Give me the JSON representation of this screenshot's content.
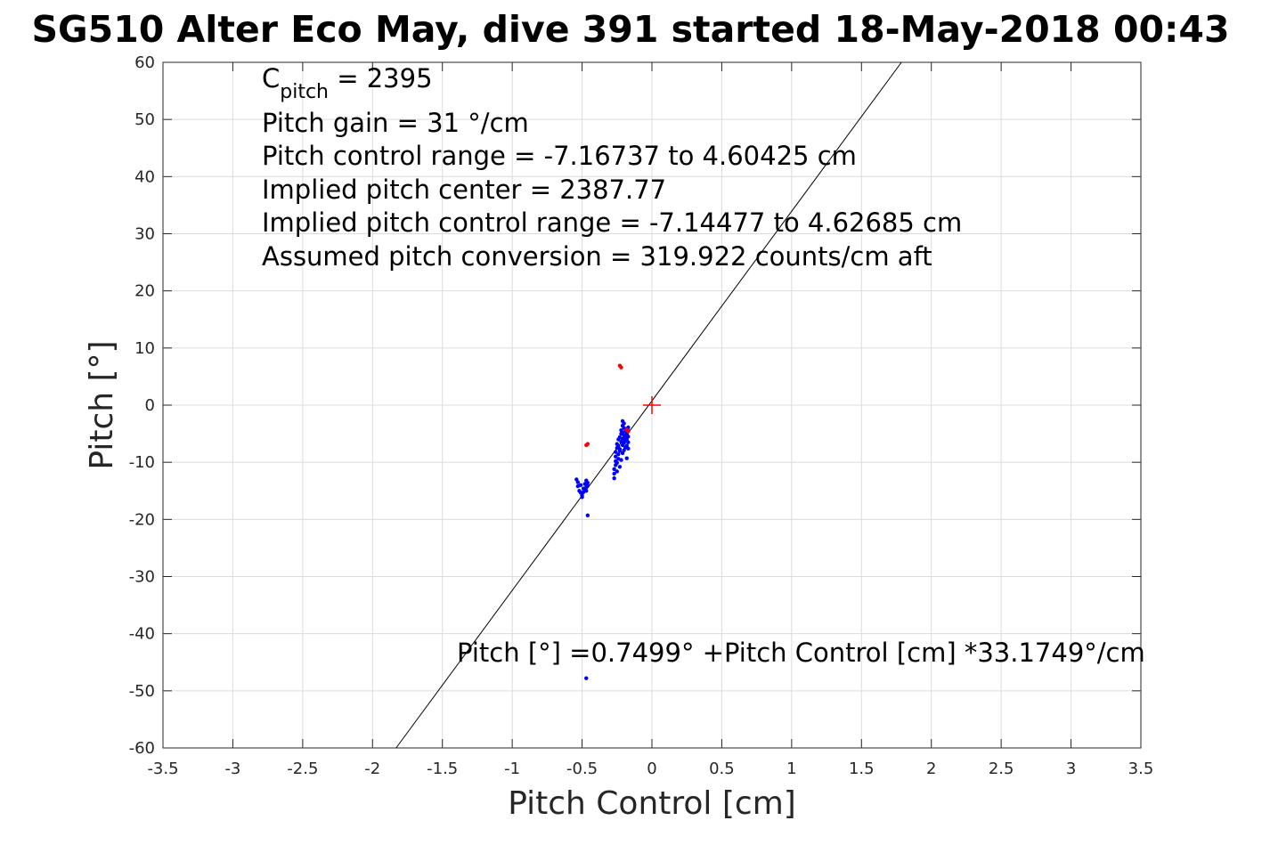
{
  "chart_data": {
    "type": "scatter",
    "title": "SG510 Alter Eco May, dive 391 started 18-May-2018 00:43",
    "xlabel": "Pitch Control [cm]",
    "ylabel": "Pitch [°]",
    "xlim": [
      -3.5,
      3.5
    ],
    "ylim": [
      -60,
      60
    ],
    "xticks": [
      -3.5,
      -3,
      -2.5,
      -2,
      -1.5,
      -1,
      -0.5,
      0,
      0.5,
      1,
      1.5,
      2,
      2.5,
      3,
      3.5
    ],
    "xtick_labels": [
      "-3.5",
      "-3",
      "-2.5",
      "-2",
      "-1.5",
      "-1",
      "-0.5",
      "0",
      "0.5",
      "1",
      "1.5",
      "2",
      "2.5",
      "3",
      "3.5"
    ],
    "yticks": [
      -60,
      -50,
      -40,
      -30,
      -20,
      -10,
      0,
      10,
      20,
      30,
      40,
      50,
      60
    ],
    "ytick_labels": [
      "-60",
      "-50",
      "-40",
      "-30",
      "-20",
      "-10",
      "0",
      "10",
      "20",
      "30",
      "40",
      "50",
      "60"
    ],
    "grid": true,
    "fit_line": {
      "intercept": 0.7499,
      "slope": 33.1749
    },
    "center_marker": {
      "x": 0,
      "y": 0,
      "color": "#ff0000",
      "symbol": "plus"
    },
    "colors": {
      "series": "#0000ff",
      "outliers": "#ff0000",
      "fit": "#000000"
    },
    "series": [
      {
        "color": "#0000ff",
        "points": [
          [
            -0.54,
            -13.0
          ],
          [
            -0.53,
            -13.5
          ],
          [
            -0.53,
            -14.2
          ],
          [
            -0.52,
            -15.0
          ],
          [
            -0.51,
            -15.3
          ],
          [
            -0.51,
            -14.0
          ],
          [
            -0.5,
            -15.8
          ],
          [
            -0.5,
            -16.1
          ],
          [
            -0.49,
            -14.6
          ],
          [
            -0.49,
            -15.2
          ],
          [
            -0.48,
            -13.8
          ],
          [
            -0.48,
            -14.9
          ],
          [
            -0.47,
            -13.2
          ],
          [
            -0.47,
            -14.4
          ],
          [
            -0.47,
            -15.0
          ],
          [
            -0.46,
            -13.6
          ],
          [
            -0.46,
            -14.1
          ],
          [
            -0.46,
            -19.3
          ],
          [
            -0.47,
            -47.8
          ],
          [
            -0.27,
            -12.8
          ],
          [
            -0.27,
            -12.0
          ],
          [
            -0.27,
            -11.2
          ],
          [
            -0.26,
            -10.5
          ],
          [
            -0.26,
            -9.8
          ],
          [
            -0.26,
            -9.0
          ],
          [
            -0.26,
            -8.2
          ],
          [
            -0.25,
            -7.5
          ],
          [
            -0.25,
            -6.8
          ],
          [
            -0.25,
            -10.1
          ],
          [
            -0.25,
            -11.6
          ],
          [
            -0.24,
            -9.4
          ],
          [
            -0.24,
            -8.6
          ],
          [
            -0.24,
            -7.2
          ],
          [
            -0.24,
            -6.0
          ],
          [
            -0.23,
            -5.6
          ],
          [
            -0.23,
            -8.0
          ],
          [
            -0.23,
            -10.8
          ],
          [
            -0.23,
            -7.7
          ],
          [
            -0.22,
            -6.4
          ],
          [
            -0.22,
            -5.0
          ],
          [
            -0.22,
            -4.4
          ],
          [
            -0.22,
            -9.6
          ],
          [
            -0.21,
            -3.6
          ],
          [
            -0.21,
            -4.8
          ],
          [
            -0.21,
            -5.9
          ],
          [
            -0.21,
            -7.0
          ],
          [
            -0.21,
            -8.4
          ],
          [
            -0.21,
            -2.8
          ],
          [
            -0.2,
            -3.2
          ],
          [
            -0.2,
            -4.0
          ],
          [
            -0.2,
            -5.3
          ],
          [
            -0.2,
            -6.6
          ],
          [
            -0.2,
            -7.9
          ],
          [
            -0.19,
            -4.6
          ],
          [
            -0.19,
            -5.7
          ],
          [
            -0.19,
            -6.2
          ],
          [
            -0.19,
            -7.4
          ],
          [
            -0.18,
            -4.2
          ],
          [
            -0.18,
            -5.1
          ],
          [
            -0.18,
            -6.0
          ],
          [
            -0.18,
            -7.1
          ],
          [
            -0.18,
            -9.3
          ],
          [
            -0.17,
            -4.5
          ],
          [
            -0.17,
            -5.5
          ],
          [
            -0.17,
            -6.5
          ],
          [
            -0.17,
            -7.6
          ],
          [
            -0.17,
            -3.9
          ]
        ]
      },
      {
        "color": "#ff0000",
        "points": [
          [
            -0.23,
            6.9
          ],
          [
            -0.22,
            6.6
          ],
          [
            -0.47,
            -7.0
          ],
          [
            -0.46,
            -6.8
          ],
          [
            -0.17,
            -4.6
          ],
          [
            -0.18,
            -4.3
          ]
        ]
      }
    ],
    "annotations": {
      "c_pitch_main": "C",
      "c_pitch_sub": "pitch",
      "c_pitch_value": " = 2395",
      "lines": [
        "Pitch gain = 31 °/cm",
        "Pitch control range = -7.16737 to 4.60425 cm",
        "Implied pitch center = 2387.77",
        "Implied pitch control range = -7.14477 to 4.62685 cm",
        "Assumed pitch conversion = 319.922 counts/cm aft"
      ],
      "equation": "Pitch [°] =0.7499° +Pitch Control [cm] *33.1749°/cm"
    }
  }
}
